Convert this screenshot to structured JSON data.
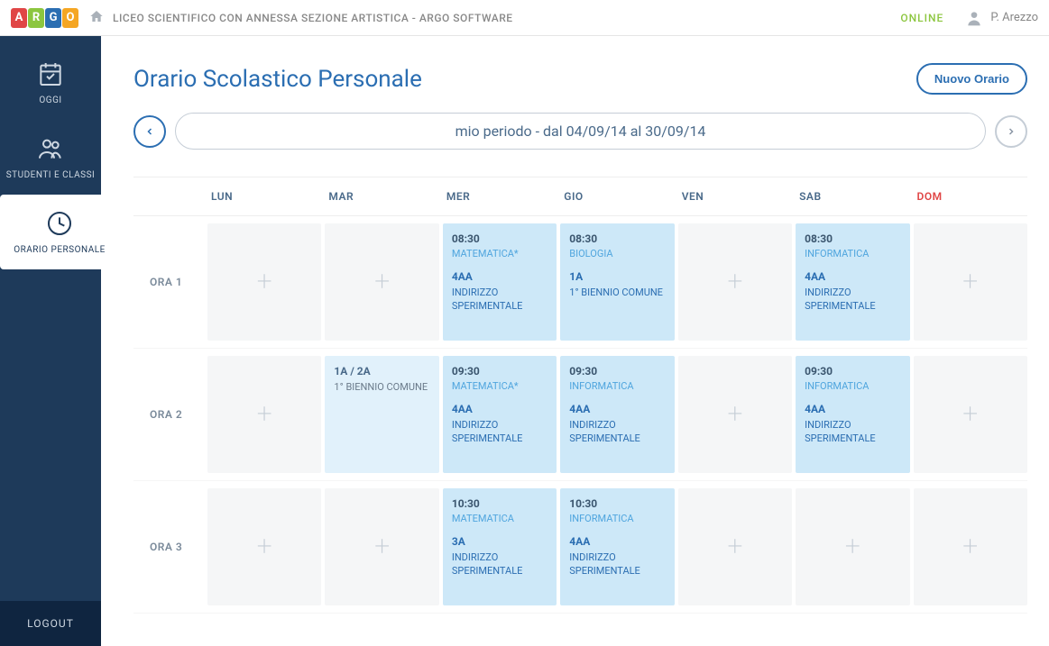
{
  "topbar": {
    "school": "LICEO SCIENTIFICO CON ANNESSA SEZIONE ARTISTICA - ARGO SOFTWARE",
    "status": "ONLINE",
    "user": "P. Arezzo",
    "logo_colors": [
      "#e04646",
      "#8cc63f",
      "#2b6eb2",
      "#f5a623"
    ],
    "logo_letters": [
      "A",
      "R",
      "G",
      "O"
    ]
  },
  "sidebar": {
    "items": [
      {
        "label": "OGGI"
      },
      {
        "label": "STUDENTI E CLASSI"
      },
      {
        "label": "ORARIO PERSONALE"
      }
    ],
    "logout": "LOGOUT"
  },
  "page": {
    "title": "Orario Scolastico Personale",
    "new_button": "Nuovo Orario",
    "period": "mio periodo - dal 04/09/14 al 30/09/14"
  },
  "timetable": {
    "days": [
      "LUN",
      "MAR",
      "MER",
      "GIO",
      "VEN",
      "SAB",
      "DOM"
    ],
    "row_labels": [
      "ORA 1",
      "ORA 2",
      "ORA 3"
    ],
    "grid": [
      [
        {
          "type": "empty"
        },
        {
          "type": "empty"
        },
        {
          "type": "filled",
          "time": "08:30",
          "subject": "MATEMATICA*",
          "class": "4AA",
          "track": "INDIRIZZO SPERIMENTALE"
        },
        {
          "type": "filled",
          "time": "08:30",
          "subject": "BIOLOGIA",
          "class": "1A",
          "track": "1° BIENNIO COMUNE"
        },
        {
          "type": "empty"
        },
        {
          "type": "filled",
          "time": "08:30",
          "subject": "INFORMATICA",
          "class": "4AA",
          "track": "INDIRIZZO SPERIMENTALE"
        },
        {
          "type": "empty"
        }
      ],
      [
        {
          "type": "empty"
        },
        {
          "type": "light",
          "class": "1A / 2A",
          "track": "1° BIENNIO COMUNE"
        },
        {
          "type": "filled",
          "time": "09:30",
          "subject": "MATEMATICA*",
          "class": "4AA",
          "track": "INDIRIZZO SPERIMENTALE"
        },
        {
          "type": "filled",
          "time": "09:30",
          "subject": "INFORMATICA",
          "class": "4AA",
          "track": "INDIRIZZO SPERIMENTALE"
        },
        {
          "type": "empty"
        },
        {
          "type": "filled",
          "time": "09:30",
          "subject": "INFORMATICA",
          "class": "4AA",
          "track": "INDIRIZZO SPERIMENTALE"
        },
        {
          "type": "empty"
        }
      ],
      [
        {
          "type": "empty"
        },
        {
          "type": "empty"
        },
        {
          "type": "filled",
          "time": "10:30",
          "subject": "MATEMATICA",
          "class": "3A",
          "track": "INDIRIZZO SPERIMENTALE"
        },
        {
          "type": "filled",
          "time": "10:30",
          "subject": "INFORMATICA",
          "class": "4AA",
          "track": "INDIRIZZO SPERIMENTALE"
        },
        {
          "type": "empty"
        },
        {
          "type": "empty"
        },
        {
          "type": "empty"
        }
      ]
    ]
  }
}
